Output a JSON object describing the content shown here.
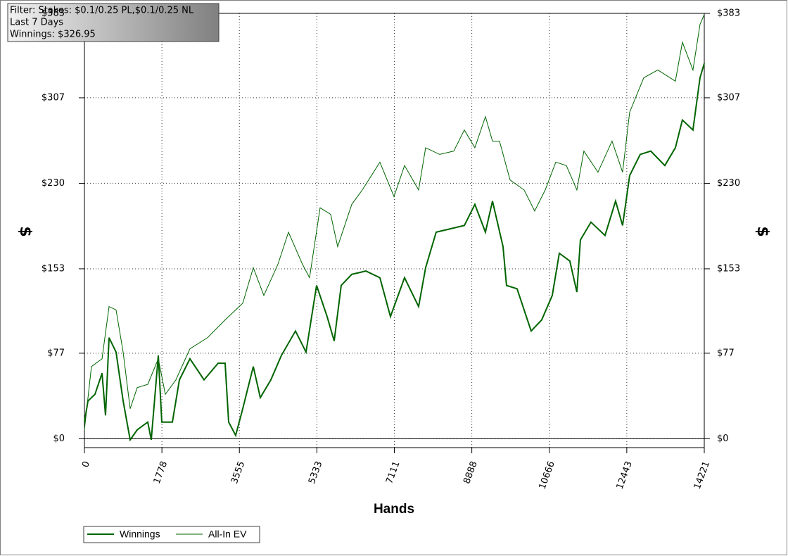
{
  "chart_data": {
    "type": "line",
    "annotation": [
      "Filter: Stakes: $0.1/0.25 PL,$0.1/0.25 NL",
      "Last 7 Days",
      "Winnings: $326.95"
    ],
    "x_label": "Hands",
    "y_label": "$",
    "y2_label": "$",
    "xlim": [
      0,
      14221
    ],
    "xticks": [
      0,
      1778,
      3555,
      5333,
      7111,
      8888,
      10666,
      12443,
      14221
    ],
    "ylim": [
      -8,
      383
    ],
    "yticks": [
      {
        "value": 0,
        "label": "$0"
      },
      {
        "value": 77,
        "label": "$77"
      },
      {
        "value": 153,
        "label": "$153"
      },
      {
        "value": 230,
        "label": "$230"
      },
      {
        "value": 307,
        "label": "$307"
      },
      {
        "value": 383,
        "label": "$383"
      }
    ],
    "grid": true,
    "legend": "bottom-left",
    "series": [
      {
        "name": "Winnings",
        "color": "#006400",
        "width": 2,
        "x": [
          0,
          81,
          242,
          404,
          484,
          565,
          726,
          888,
          1049,
          1211,
          1453,
          1533,
          1695,
          1775,
          2018,
          2179,
          2421,
          2744,
          3067,
          3228,
          3309,
          3470,
          3632,
          3874,
          4035,
          4277,
          4519,
          4842,
          5084,
          5326,
          5568,
          5730,
          5891,
          6133,
          6456,
          6779,
          7021,
          7344,
          7667,
          7828,
          8070,
          8393,
          8716,
          8958,
          9200,
          9362,
          9604,
          9684,
          9926,
          10249,
          10491,
          10733,
          10895,
          11137,
          11298,
          11379,
          11621,
          11944,
          12186,
          12347,
          12509,
          12751,
          12993,
          13316,
          13558,
          13719,
          13961,
          14123,
          14221
        ],
        "values": [
          15,
          34,
          40,
          59,
          21,
          91,
          78,
          34,
          -1,
          8,
          15,
          -1,
          75,
          15,
          15,
          53,
          72,
          53,
          68,
          68,
          15,
          3,
          27,
          65,
          37,
          53,
          75,
          97,
          78,
          138,
          110,
          88,
          138,
          148,
          151,
          145,
          110,
          145,
          119,
          154,
          186,
          189,
          192,
          211,
          186,
          214,
          173,
          138,
          135,
          97,
          107,
          129,
          167,
          160,
          132,
          179,
          195,
          183,
          214,
          192,
          237,
          256,
          259,
          246,
          262,
          287,
          278,
          325,
          338
        ]
      },
      {
        "name": "All-In EV",
        "color": "#006400",
        "width": 1,
        "x": [
          0,
          161,
          404,
          565,
          726,
          888,
          1049,
          1211,
          1453,
          1695,
          1856,
          2098,
          2421,
          2825,
          3228,
          3632,
          3874,
          4116,
          4439,
          4681,
          5003,
          5165,
          5407,
          5649,
          5810,
          6133,
          6375,
          6779,
          7102,
          7344,
          7667,
          7828,
          8151,
          8474,
          8716,
          8958,
          9200,
          9362,
          9523,
          9765,
          10088,
          10330,
          10572,
          10814,
          11056,
          11298,
          11459,
          11782,
          12105,
          12347,
          12509,
          12832,
          13155,
          13558,
          13719,
          13961,
          14123,
          14221
        ],
        "values": [
          8,
          65,
          72,
          119,
          116,
          78,
          27,
          46,
          49,
          72,
          40,
          53,
          81,
          91,
          107,
          122,
          154,
          129,
          157,
          186,
          157,
          145,
          208,
          202,
          173,
          211,
          224,
          249,
          218,
          246,
          224,
          262,
          256,
          259,
          278,
          262,
          290,
          268,
          268,
          233,
          224,
          205,
          224,
          249,
          246,
          224,
          259,
          240,
          268,
          240,
          294,
          325,
          332,
          322,
          357,
          332,
          373,
          382
        ]
      }
    ]
  }
}
